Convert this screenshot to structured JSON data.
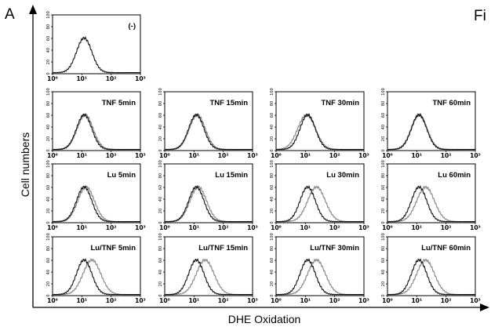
{
  "figure": {
    "panel_letter": "A",
    "corner_text": "Fi",
    "ylabel": "Cell numbers",
    "xlabel": "DHE Oxidation"
  },
  "chart_data": [
    {
      "type": "line",
      "title": "(-)",
      "xscale": "log",
      "xlim": [
        1,
        1000
      ],
      "xticks": [
        "10⁰",
        "10¹",
        "10²",
        "10³"
      ],
      "yticks": [
        "0",
        "20",
        "40",
        "60",
        "80",
        "100"
      ],
      "series": [
        {
          "peak_x": 12,
          "width": 0.26
        }
      ]
    },
    {
      "type": "line",
      "title": "TNF 5min",
      "xscale": "log",
      "xlim": [
        1,
        1000
      ],
      "xticks": [
        "10⁰",
        "10¹",
        "10²",
        "10³"
      ],
      "yticks": [
        "0",
        "20",
        "40",
        "60",
        "80",
        "100"
      ],
      "series": [
        {
          "peak_x": 12,
          "width": 0.26
        },
        {
          "peak_x": 13,
          "width": 0.27
        }
      ]
    },
    {
      "type": "line",
      "title": "TNF 15min",
      "xscale": "log",
      "xlim": [
        1,
        1000
      ],
      "xticks": [
        "10⁰",
        "10¹",
        "10²",
        "10³"
      ],
      "yticks": [
        "0",
        "20",
        "40",
        "60",
        "80",
        "100"
      ],
      "series": [
        {
          "peak_x": 12,
          "width": 0.26
        },
        {
          "peak_x": 13,
          "width": 0.27
        }
      ]
    },
    {
      "type": "line",
      "title": "TNF 30min",
      "xscale": "log",
      "xlim": [
        1,
        1000
      ],
      "xticks": [
        "10⁰",
        "10¹",
        "10²",
        "10³"
      ],
      "yticks": [
        "0",
        "20",
        "40",
        "60",
        "80",
        "100"
      ],
      "series": [
        {
          "peak_x": 12,
          "width": 0.26
        },
        {
          "peak_x": 11,
          "width": 0.3
        }
      ]
    },
    {
      "type": "line",
      "title": "TNF 60min",
      "xscale": "log",
      "xlim": [
        1,
        1000
      ],
      "xticks": [
        "10⁰",
        "10¹",
        "10²",
        "10³"
      ],
      "yticks": [
        "0",
        "20",
        "40",
        "60",
        "80",
        "100"
      ],
      "series": [
        {
          "peak_x": 12,
          "width": 0.26
        },
        {
          "peak_x": 12,
          "width": 0.27
        }
      ]
    },
    {
      "type": "line",
      "title": "Lu 5min",
      "xscale": "log",
      "xlim": [
        1,
        1000
      ],
      "xticks": [
        "10⁰",
        "10¹",
        "10²",
        "10³"
      ],
      "yticks": [
        "0",
        "20",
        "40",
        "60",
        "80",
        "100"
      ],
      "series": [
        {
          "peak_x": 12,
          "width": 0.26
        },
        {
          "peak_x": 14,
          "width": 0.28
        }
      ]
    },
    {
      "type": "line",
      "title": "Lu 15min",
      "xscale": "log",
      "xlim": [
        1,
        1000
      ],
      "xticks": [
        "10⁰",
        "10¹",
        "10²",
        "10³"
      ],
      "yticks": [
        "0",
        "20",
        "40",
        "60",
        "80",
        "100"
      ],
      "series": [
        {
          "peak_x": 12,
          "width": 0.26
        },
        {
          "peak_x": 14,
          "width": 0.28
        }
      ]
    },
    {
      "type": "line",
      "title": "Lu 30min",
      "xscale": "log",
      "xlim": [
        1,
        1000
      ],
      "xticks": [
        "10⁰",
        "10¹",
        "10²",
        "10³"
      ],
      "yticks": [
        "0",
        "20",
        "40",
        "60",
        "80",
        "100"
      ],
      "series": [
        {
          "peak_x": 12,
          "width": 0.26
        },
        {
          "peak_x": 24,
          "width": 0.3
        }
      ]
    },
    {
      "type": "line",
      "title": "Lu 60min",
      "xscale": "log",
      "xlim": [
        1,
        1000
      ],
      "xticks": [
        "10⁰",
        "10¹",
        "10²",
        "10³"
      ],
      "yticks": [
        "0",
        "20",
        "40",
        "60",
        "80",
        "100"
      ],
      "series": [
        {
          "peak_x": 12,
          "width": 0.26
        },
        {
          "peak_x": 20,
          "width": 0.3
        }
      ]
    },
    {
      "type": "line",
      "title": "Lu/TNF 5min",
      "xscale": "log",
      "xlim": [
        1,
        1000
      ],
      "xticks": [
        "10⁰",
        "10¹",
        "10²",
        "10³"
      ],
      "yticks": [
        "0",
        "20",
        "40",
        "60",
        "80",
        "100"
      ],
      "series": [
        {
          "peak_x": 12,
          "width": 0.26
        },
        {
          "peak_x": 22,
          "width": 0.3
        }
      ]
    },
    {
      "type": "line",
      "title": "Lu/TNF 15min",
      "xscale": "log",
      "xlim": [
        1,
        1000
      ],
      "xticks": [
        "10⁰",
        "10¹",
        "10²",
        "10³"
      ],
      "yticks": [
        "0",
        "20",
        "40",
        "60",
        "80",
        "100"
      ],
      "series": [
        {
          "peak_x": 12,
          "width": 0.26
        },
        {
          "peak_x": 24,
          "width": 0.3
        }
      ]
    },
    {
      "type": "line",
      "title": "Lu/TNF 30min",
      "xscale": "log",
      "xlim": [
        1,
        1000
      ],
      "xticks": [
        "10⁰",
        "10¹",
        "10²",
        "10³"
      ],
      "yticks": [
        "0",
        "20",
        "40",
        "60",
        "80",
        "100"
      ],
      "series": [
        {
          "peak_x": 12,
          "width": 0.26
        },
        {
          "peak_x": 24,
          "width": 0.3
        }
      ]
    },
    {
      "type": "line",
      "title": "Lu/TNF 60min",
      "xscale": "log",
      "xlim": [
        1,
        1000
      ],
      "xticks": [
        "10⁰",
        "10¹",
        "10²",
        "10³"
      ],
      "yticks": [
        "0",
        "20",
        "40",
        "60",
        "80",
        "100"
      ],
      "series": [
        {
          "peak_x": 12,
          "width": 0.26
        },
        {
          "peak_x": 20,
          "width": 0.3
        }
      ]
    }
  ],
  "colors": {
    "control": "#111111",
    "treated": "#8a8a8a",
    "axis": "#000000"
  }
}
